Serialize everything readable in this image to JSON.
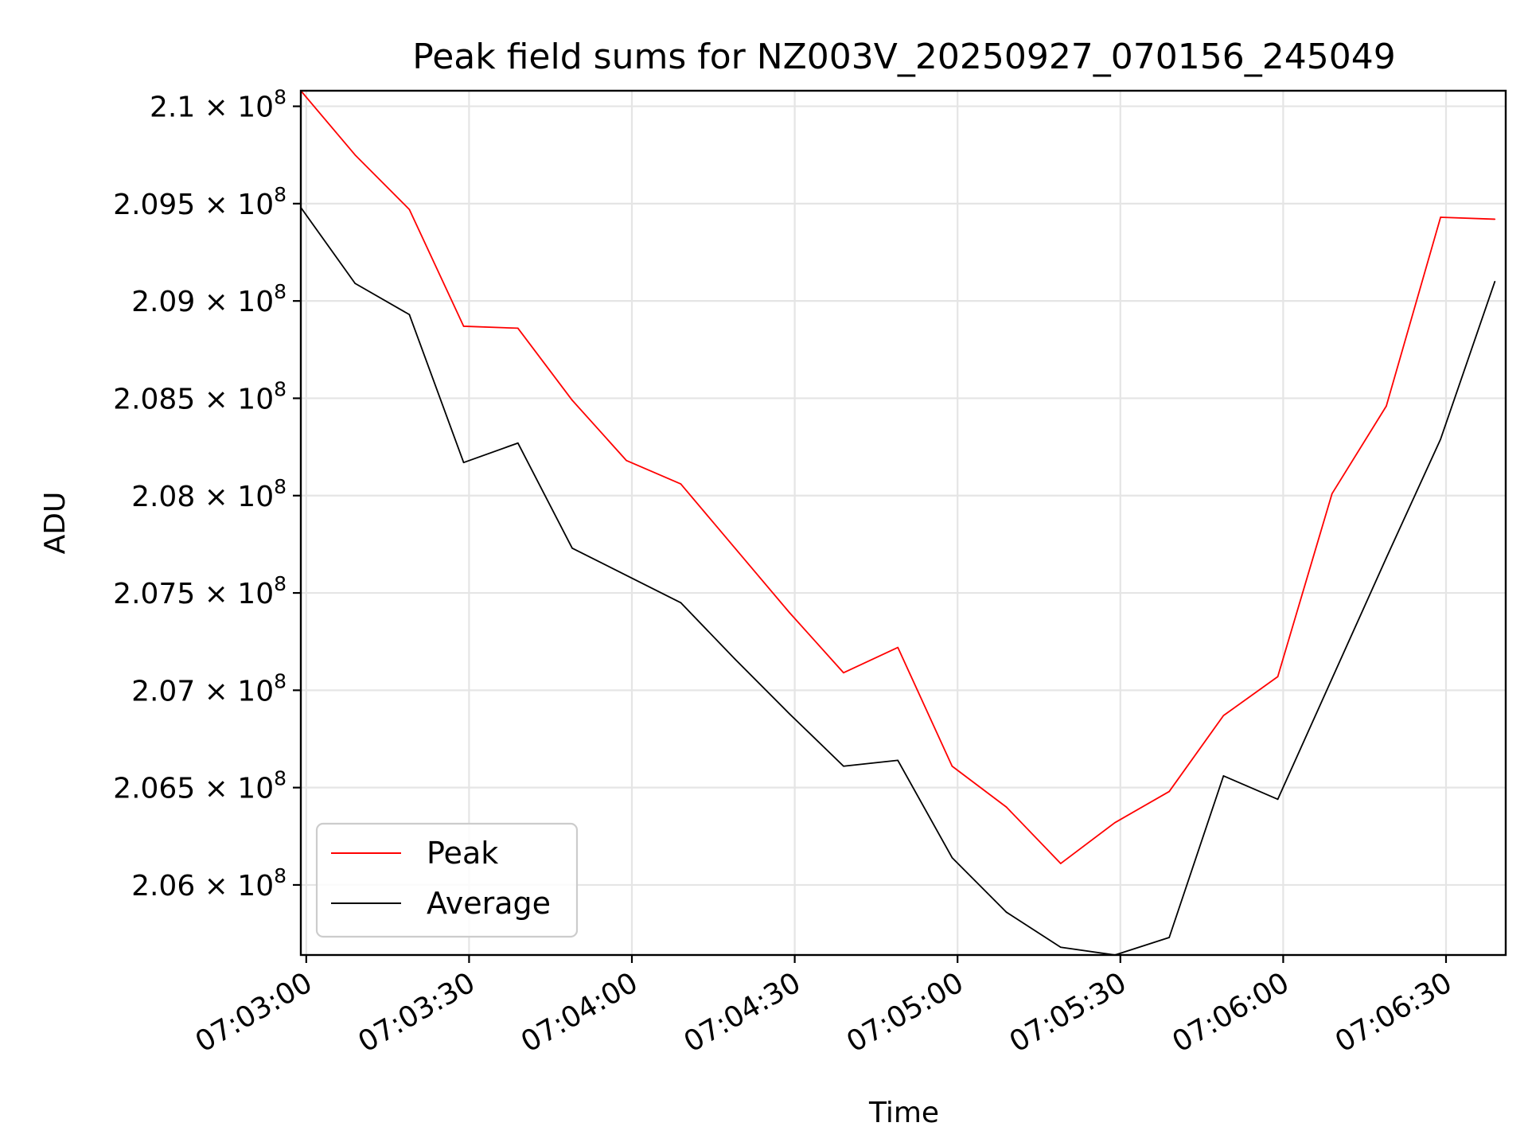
{
  "chart_data": {
    "type": "line",
    "title": "Peak field sums for NZ003V_20250927_070156_245049",
    "xlabel": "Time",
    "ylabel": "ADU",
    "x": [
      "07:02:59",
      "07:03:09",
      "07:03:19",
      "07:03:29",
      "07:03:39",
      "07:03:49",
      "07:03:59",
      "07:04:09",
      "07:04:19",
      "07:04:29",
      "07:04:39",
      "07:04:49",
      "07:04:59",
      "07:05:09",
      "07:05:19",
      "07:05:29",
      "07:05:39",
      "07:05:49",
      "07:05:59",
      "07:06:09",
      "07:06:19",
      "07:06:29",
      "07:06:39"
    ],
    "series": [
      {
        "name": "Peak",
        "color": "#ff0000",
        "values": [
          210080000.0,
          209750000.0,
          209470000.0,
          208870000.0,
          208860000.0,
          208490000.0,
          208180000.0,
          208060000.0,
          207730000.0,
          207400000.0,
          207090000.0,
          207220000.0,
          206610000.0,
          206400000.0,
          206110000.0,
          206320000.0,
          206480000.0,
          206870000.0,
          207070000.0,
          208010000.0,
          208460000.0,
          209430000.0,
          209420000.0
        ]
      },
      {
        "name": "Average",
        "color": "#000000",
        "values": [
          209480000.0,
          209090000.0,
          208930000.0,
          208170000.0,
          208270000.0,
          207730000.0,
          207590000.0,
          207450000.0,
          207160000.0,
          206880000.0,
          206610000.0,
          206640000.0,
          206140000.0,
          205860000.0,
          205680000.0,
          205640000.0,
          205730000.0,
          206560000.0,
          206440000.0,
          207060000.0,
          207680000.0,
          208290000.0,
          209100000.0
        ]
      }
    ],
    "xticks": [
      "07:03:00",
      "07:03:30",
      "07:04:00",
      "07:04:30",
      "07:05:00",
      "07:05:30",
      "07:06:00",
      "07:06:30"
    ],
    "yticks": [
      {
        "value": 206000000.0,
        "label": "2.06 × 10⁸"
      },
      {
        "value": 206500000.0,
        "label": "2.065 × 10⁸"
      },
      {
        "value": 207000000.0,
        "label": "2.07 × 10⁸"
      },
      {
        "value": 207500000.0,
        "label": "2.075 × 10⁸"
      },
      {
        "value": 208000000.0,
        "label": "2.08 × 10⁸"
      },
      {
        "value": 208500000.0,
        "label": "2.085 × 10⁸"
      },
      {
        "value": 209000000.0,
        "label": "2.09 × 10⁸"
      },
      {
        "value": 209500000.0,
        "label": "2.095 × 10⁸"
      },
      {
        "value": 210000000.0,
        "label": "2.1 × 10⁸"
      }
    ],
    "xlim": [
      "07:02:59",
      "07:06:41"
    ],
    "ylim": [
      205640000.0,
      210080000.0
    ],
    "grid": true,
    "legend": "lower-left"
  }
}
